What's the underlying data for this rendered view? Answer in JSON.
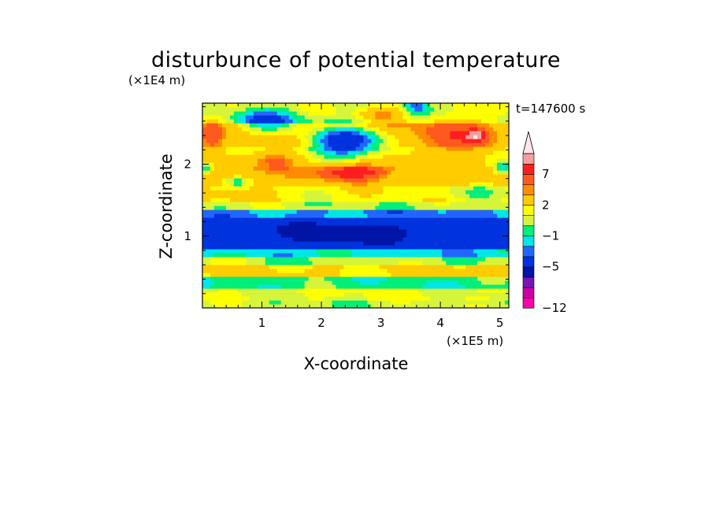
{
  "chart_data": {
    "type": "heatmap",
    "title": "disturbunce of potential temperature",
    "xlabel": "X-coordinate",
    "ylabel": "Z-coordinate",
    "x_scale_note": "(×1E5 m)",
    "y_scale_note": "(×1E4 m)",
    "time_label": "t=147600 s",
    "xlim": [
      0,
      5.15
    ],
    "ylim": [
      0,
      2.85
    ],
    "x_ticks": [
      1,
      2,
      3,
      4,
      5
    ],
    "y_ticks": [
      1,
      2
    ],
    "x_tick_labels": [
      "1",
      "2",
      "3",
      "4",
      "5"
    ],
    "y_tick_labels": [
      "1",
      "2"
    ],
    "colorbar": {
      "levels": [
        -12,
        -10,
        -8,
        -7,
        -5,
        -3,
        -2,
        -1,
        0,
        1,
        2,
        4,
        5,
        7,
        9,
        11
      ],
      "labels": [
        {
          "value": -12,
          "text": "−12"
        },
        {
          "value": -5,
          "text": "−5"
        },
        {
          "value": -1,
          "text": "−1"
        },
        {
          "value": 2,
          "text": "2"
        },
        {
          "value": 7,
          "text": "7"
        }
      ],
      "colors": [
        "#ff00b0",
        "#cc00aa",
        "#7a14b4",
        "#0014a6",
        "#0033dd",
        "#2266ff",
        "#00e6e6",
        "#00ee7a",
        "#d6f53a",
        "#ffff00",
        "#ffcc00",
        "#ff8c00",
        "#ff5a1e",
        "#ff1e1e",
        "#f5a0a0"
      ],
      "extend_top_color": "#ffe6ea"
    },
    "field": {
      "background": 0.2,
      "bands": [
        {
          "z0": 0.0,
          "z1": 0.12,
          "value": 0.4
        },
        {
          "z0": 0.12,
          "z1": 0.3,
          "value": 1.0
        },
        {
          "z0": 0.3,
          "z1": 0.45,
          "value": -0.6
        },
        {
          "z0": 0.45,
          "z1": 0.62,
          "value": 2.2
        },
        {
          "z0": 0.62,
          "z1": 0.72,
          "value": 0.3
        },
        {
          "z0": 0.72,
          "z1": 0.82,
          "value": -1.5
        },
        {
          "z0": 0.82,
          "z1": 1.25,
          "value": -4.0
        },
        {
          "z0": 1.25,
          "z1": 1.35,
          "value": -2.2
        },
        {
          "z0": 1.35,
          "z1": 1.5,
          "value": 0.4
        },
        {
          "z0": 1.5,
          "z1": 1.68,
          "value": 1.6
        },
        {
          "z0": 1.68,
          "z1": 1.95,
          "value": 2.8
        },
        {
          "z0": 1.95,
          "z1": 2.25,
          "value": 2.0
        },
        {
          "z0": 2.25,
          "z1": 2.55,
          "value": 3.0
        },
        {
          "z0": 2.55,
          "z1": 2.85,
          "value": 0.8
        }
      ],
      "blobs": [
        {
          "x": 2.4,
          "z": 2.32,
          "sx": 0.65,
          "sz": 0.2,
          "value": -7.5
        },
        {
          "x": 1.1,
          "z": 2.6,
          "sx": 0.5,
          "sz": 0.16,
          "value": -4.5
        },
        {
          "x": 2.5,
          "z": 1.9,
          "sx": 0.6,
          "sz": 0.11,
          "value": 6.5
        },
        {
          "x": 1.2,
          "z": 2.05,
          "sx": 0.45,
          "sz": 0.13,
          "value": 3.5
        },
        {
          "x": 0.6,
          "z": 1.75,
          "sx": 0.2,
          "sz": 0.06,
          "value": -3.2
        },
        {
          "x": 0.05,
          "z": 1.95,
          "sx": 0.12,
          "sz": 0.08,
          "value": -4.0
        },
        {
          "x": 5.05,
          "z": 1.95,
          "sx": 0.15,
          "sz": 0.08,
          "value": -4.0
        },
        {
          "x": 4.2,
          "z": 2.4,
          "sx": 0.6,
          "sz": 0.28,
          "value": 3.8
        },
        {
          "x": 4.6,
          "z": 2.4,
          "sx": 0.14,
          "sz": 0.08,
          "value": 6.0
        },
        {
          "x": 3.6,
          "z": 2.8,
          "sx": 0.2,
          "sz": 0.12,
          "value": -3.5
        },
        {
          "x": 0.15,
          "z": 2.4,
          "sx": 0.2,
          "sz": 0.2,
          "value": 3.0
        },
        {
          "x": 3.0,
          "z": 2.7,
          "sx": 0.35,
          "sz": 0.12,
          "value": 3.5
        },
        {
          "x": 2.5,
          "z": 1.05,
          "sx": 1.3,
          "sz": 0.12,
          "value": -2.5
        },
        {
          "x": 0.35,
          "z": 0.7,
          "sx": 0.35,
          "sz": 0.12,
          "value": 1.6
        },
        {
          "x": 4.5,
          "z": 1.6,
          "sx": 0.5,
          "sz": 0.12,
          "value": -1.5
        },
        {
          "x": 0.7,
          "z": 1.62,
          "sx": 0.45,
          "sz": 0.1,
          "value": 1.8
        }
      ]
    }
  }
}
